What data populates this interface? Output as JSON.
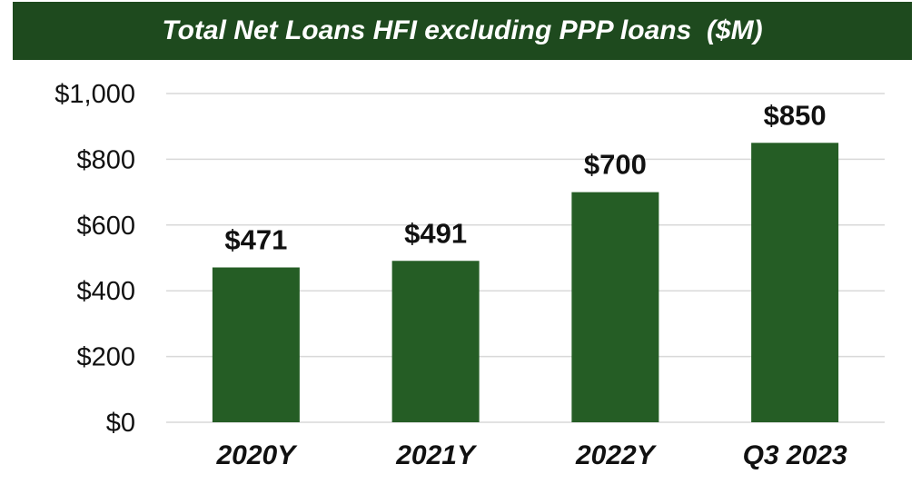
{
  "chart_data": {
    "type": "bar",
    "title": "Total Net Loans HFI excluding PPP loans  ($M)",
    "categories": [
      "2020Y",
      "2021Y",
      "2022Y",
      "Q3 2023"
    ],
    "values": [
      471,
      491,
      700,
      850
    ],
    "data_labels": [
      "$471",
      "$491",
      "$700",
      "$850"
    ],
    "y_ticks": [
      0,
      200,
      400,
      600,
      800,
      1000
    ],
    "y_tick_labels": [
      "$0",
      "$200",
      "$400",
      "$600",
      "$800",
      "$1,000"
    ],
    "ylim": [
      0,
      1000
    ],
    "xlabel": "",
    "ylabel": "",
    "grid": true,
    "legend": "none",
    "colors": {
      "bar": "#255d25",
      "title_bg": "#1e4a1e",
      "title_text": "#ffffff",
      "grid": "#d9d9d9"
    }
  }
}
